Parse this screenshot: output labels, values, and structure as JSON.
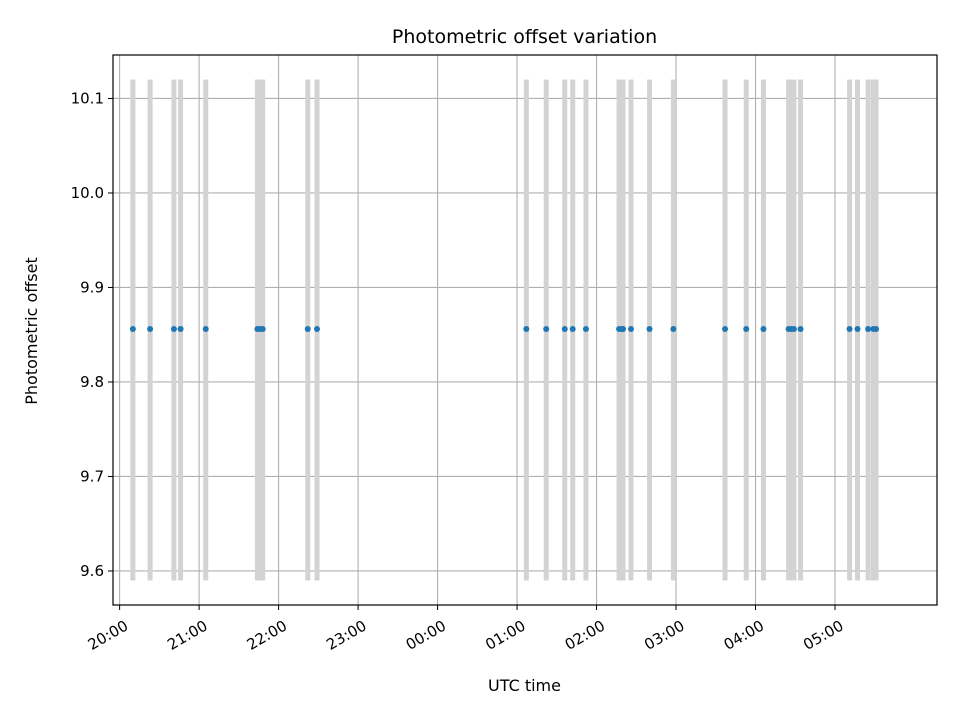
{
  "chart_data": {
    "type": "scatter",
    "title": "Photometric offset variation",
    "xlabel": "UTC time",
    "ylabel": "Photometric offset",
    "xlim": [
      "19:55",
      "06:17"
    ],
    "ylim": [
      9.564,
      10.146
    ],
    "x_ticks": [
      "20:00",
      "21:00",
      "22:00",
      "23:00",
      "00:00",
      "01:00",
      "02:00",
      "03:00",
      "04:00",
      "05:00"
    ],
    "y_ticks": [
      "9.6",
      "9.7",
      "9.8",
      "9.9",
      "10.0",
      "10.1"
    ],
    "grid": true,
    "marker_color": "#1f77b4",
    "band_color": "#d3d3d3",
    "band_range": [
      9.59,
      10.12
    ],
    "series": [
      {
        "x": [
          "20:10",
          "20:23",
          "20:41",
          "20:46",
          "21:05",
          "21:44",
          "21:46",
          "21:48",
          "22:22",
          "22:29",
          "01:07",
          "01:22",
          "01:36",
          "01:42",
          "01:52",
          "02:17",
          "02:19",
          "02:20",
          "02:26",
          "02:40",
          "02:58",
          "03:37",
          "03:53",
          "04:06",
          "04:25",
          "04:27",
          "04:29",
          "04:34",
          "05:11",
          "05:17",
          "05:25",
          "05:29",
          "05:31"
        ],
        "y": [
          9.856,
          9.856,
          9.856,
          9.856,
          9.856,
          9.856,
          9.856,
          9.856,
          9.856,
          9.856,
          9.856,
          9.856,
          9.856,
          9.856,
          9.856,
          9.856,
          9.856,
          9.856,
          9.856,
          9.856,
          9.856,
          9.856,
          9.856,
          9.856,
          9.856,
          9.856,
          9.856,
          9.856,
          9.856,
          9.856,
          9.856,
          9.856,
          9.856
        ]
      }
    ]
  }
}
